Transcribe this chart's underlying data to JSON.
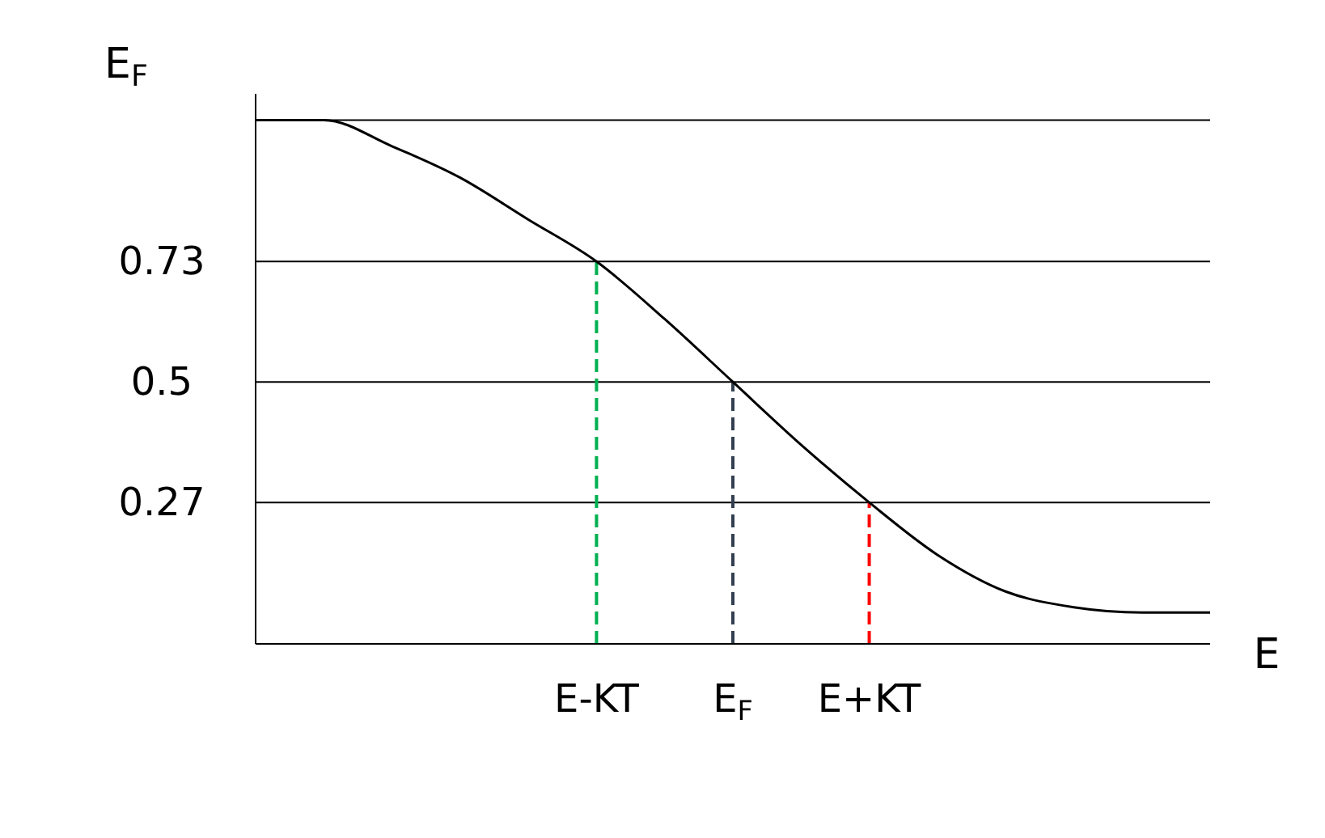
{
  "chart_data": {
    "type": "line",
    "xlabel": "E",
    "ylabel": "E$_{F}$",
    "categories": [
      null,
      null,
      null,
      null,
      null,
      "E-KT",
      null,
      "E$_{F}$",
      null,
      "E+KT",
      null,
      null,
      null,
      null,
      null
    ],
    "series": [
      {
        "color": "#000000",
        "values": [
          1,
          1,
          0.95,
          0.89,
          0.81,
          0.73,
          0.62,
          0.5,
          0.38,
          0.27,
          0.17,
          0.1,
          0.07,
          0.06,
          0.06
        ]
      }
    ],
    "ylim": [
      0,
      1.05
    ],
    "yticks": [
      0.27,
      0.5,
      0.73,
      {
        "value": 1,
        "label": null
      }
    ],
    "grid": "y",
    "marker": "none",
    "line_style": "solid",
    "ref_lines": [
      {
        "axis": "x",
        "value": "E-KT",
        "color": "#00b050",
        "line_style": "dashed"
      },
      {
        "axis": "x",
        "value": "E$_{F}$",
        "color": "#333f50",
        "line_style": "dashed"
      },
      {
        "axis": "x",
        "value": "E+KT",
        "color": "#ff0000",
        "line_style": "dashed"
      }
    ]
  }
}
